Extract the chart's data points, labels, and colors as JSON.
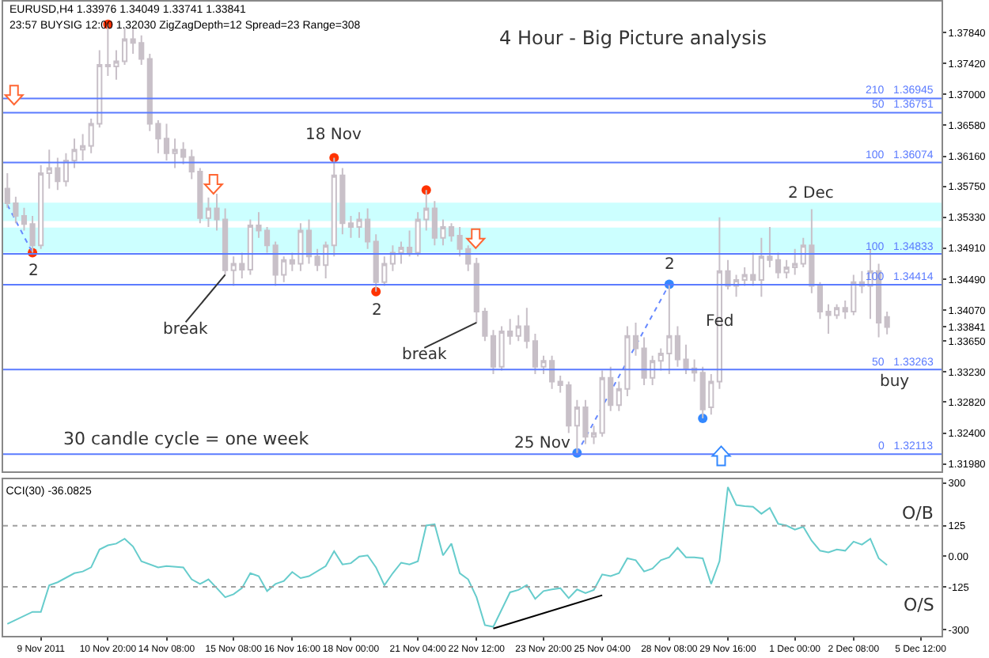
{
  "chart_data": [
    {
      "type": "candlestick",
      "title": "4 Hour - Big Picture analysis",
      "subtitle": "EURUSD,H4 1.33976 1.34049 1.33741 1.33841",
      "annotations": [
        "23:57 BUYSIG 12:00 1.32030 ZigZagDepth=12 Spread=23 Range=308",
        "30 candle cycle = one week",
        {
          "text": "2",
          "y": 1.3485
        },
        {
          "text": "18 Nov",
          "y": 1.3614
        },
        {
          "text": "2",
          "y": 1.3432
        },
        "break",
        "break",
        {
          "text": "25 Nov",
          "y": 1.3213
        },
        {
          "text": "2",
          "y": 1.3442
        },
        {
          "text": "Fed",
          "y": 1.339
        },
        {
          "text": "2 Dec",
          "y": 1.3544
        },
        {
          "text": "buy",
          "y": 1.3317
        }
      ],
      "color": "#c8c0c8",
      "categories": [
        null,
        null,
        null,
        null,
        null,
        null,
        null,
        null,
        null,
        null,
        null,
        null,
        null,
        null,
        null,
        null,
        null,
        null,
        null,
        null,
        null,
        null,
        null,
        null,
        null,
        null,
        null,
        null,
        null,
        null,
        null,
        null,
        null,
        null,
        null,
        null,
        null,
        null,
        null,
        null,
        null,
        null,
        null,
        null,
        null,
        null,
        null,
        null,
        null,
        null,
        null,
        null,
        null,
        null,
        null,
        null,
        null,
        null,
        null,
        null,
        null,
        null,
        null,
        null,
        null,
        null,
        null,
        null,
        null,
        null,
        null,
        null,
        null,
        null,
        null,
        null,
        null,
        null,
        null,
        null,
        null,
        null,
        null,
        null,
        null,
        null,
        null,
        null,
        null,
        null,
        null,
        null,
        null,
        null,
        null,
        null,
        null,
        null,
        null,
        null,
        null,
        null,
        null,
        null,
        null,
        null,
        null,
        null,
        null,
        null,
        null,
        null
      ],
      "ohlc": [
        [
          1.3572,
          1.3593,
          1.3546,
          1.3552
        ],
        [
          1.3552,
          1.3561,
          1.3525,
          1.3535
        ],
        [
          1.3535,
          1.3546,
          1.3515,
          1.3524
        ],
        [
          1.3524,
          1.3535,
          1.3485,
          1.3495
        ],
        [
          1.3495,
          1.3604,
          1.349,
          1.3593
        ],
        [
          1.3593,
          1.3625,
          1.3572,
          1.36
        ],
        [
          1.36,
          1.3614,
          1.357,
          1.3582
        ],
        [
          1.3582,
          1.362,
          1.3575,
          1.361
        ],
        [
          1.361,
          1.364,
          1.36,
          1.3625
        ],
        [
          1.3625,
          1.3646,
          1.361,
          1.363
        ],
        [
          1.363,
          1.3667,
          1.362,
          1.366
        ],
        [
          1.366,
          1.376,
          1.3655,
          1.374
        ],
        [
          1.374,
          1.3795,
          1.3725,
          1.3738
        ],
        [
          1.3738,
          1.376,
          1.372,
          1.3745
        ],
        [
          1.3745,
          1.379,
          1.374,
          1.3775
        ],
        [
          1.3775,
          1.379,
          1.3755,
          1.377
        ],
        [
          1.377,
          1.378,
          1.374,
          1.3748
        ],
        [
          1.3748,
          1.3755,
          1.365,
          1.366
        ],
        [
          1.366,
          1.3665,
          1.362,
          1.364
        ],
        [
          1.364,
          1.366,
          1.361,
          1.362
        ],
        [
          1.362,
          1.364,
          1.36,
          1.3625
        ],
        [
          1.3625,
          1.3635,
          1.3605,
          1.3615
        ],
        [
          1.3615,
          1.3625,
          1.3585,
          1.3595
        ],
        [
          1.3595,
          1.36,
          1.3525,
          1.3532
        ],
        [
          1.3532,
          1.356,
          1.352,
          1.3545
        ],
        [
          1.3545,
          1.3565,
          1.3515,
          1.353
        ],
        [
          1.353,
          1.3545,
          1.3455,
          1.3461
        ],
        [
          1.3461,
          1.348,
          1.344,
          1.347
        ],
        [
          1.347,
          1.3485,
          1.345,
          1.3462
        ],
        [
          1.3462,
          1.353,
          1.3455,
          1.3522
        ],
        [
          1.3522,
          1.354,
          1.3505,
          1.3515
        ],
        [
          1.3515,
          1.352,
          1.3485,
          1.3495
        ],
        [
          1.3495,
          1.35,
          1.344,
          1.3455
        ],
        [
          1.3455,
          1.348,
          1.3445,
          1.3475
        ],
        [
          1.3475,
          1.3485,
          1.346,
          1.347
        ],
        [
          1.347,
          1.3525,
          1.346,
          1.3515
        ],
        [
          1.3515,
          1.353,
          1.347,
          1.348
        ],
        [
          1.348,
          1.349,
          1.346,
          1.3468
        ],
        [
          1.3468,
          1.35,
          1.345,
          1.3495
        ],
        [
          1.3495,
          1.3614,
          1.348,
          1.359
        ],
        [
          1.359,
          1.36,
          1.351,
          1.3525
        ],
        [
          1.3525,
          1.3535,
          1.3505,
          1.352
        ],
        [
          1.352,
          1.354,
          1.3505,
          1.353
        ],
        [
          1.353,
          1.3545,
          1.349,
          1.35
        ],
        [
          1.35,
          1.351,
          1.3432,
          1.3445
        ],
        [
          1.3445,
          1.348,
          1.344,
          1.347
        ],
        [
          1.347,
          1.3495,
          1.346,
          1.3485
        ],
        [
          1.3485,
          1.35,
          1.347,
          1.3492
        ],
        [
          1.3492,
          1.3515,
          1.348,
          1.3485
        ],
        [
          1.3485,
          1.354,
          1.348,
          1.353
        ],
        [
          1.353,
          1.357,
          1.3515,
          1.3545
        ],
        [
          1.3545,
          1.3555,
          1.3495,
          1.3505
        ],
        [
          1.3505,
          1.353,
          1.3495,
          1.352
        ],
        [
          1.352,
          1.3525,
          1.35,
          1.3508
        ],
        [
          1.3508,
          1.352,
          1.348,
          1.349
        ],
        [
          1.349,
          1.3495,
          1.346,
          1.347
        ],
        [
          1.347,
          1.3478,
          1.339,
          1.3405
        ],
        [
          1.3405,
          1.341,
          1.3365,
          1.3372
        ],
        [
          1.3372,
          1.338,
          1.332,
          1.333
        ],
        [
          1.333,
          1.3385,
          1.3325,
          1.3378
        ],
        [
          1.3378,
          1.3395,
          1.336,
          1.3372
        ],
        [
          1.3372,
          1.34,
          1.3365,
          1.3385
        ],
        [
          1.3385,
          1.341,
          1.3355,
          1.3365
        ],
        [
          1.3365,
          1.3375,
          1.332,
          1.333
        ],
        [
          1.333,
          1.3345,
          1.332,
          1.3338
        ],
        [
          1.3338,
          1.3345,
          1.33,
          1.331
        ],
        [
          1.331,
          1.3318,
          1.3295,
          1.3305
        ],
        [
          1.3305,
          1.331,
          1.324,
          1.325
        ],
        [
          1.325,
          1.3285,
          1.3213,
          1.3275
        ],
        [
          1.3275,
          1.3285,
          1.3225,
          1.3235
        ],
        [
          1.3235,
          1.325,
          1.3225,
          1.324
        ],
        [
          1.324,
          1.3325,
          1.3235,
          1.3315
        ],
        [
          1.3315,
          1.333,
          1.327,
          1.3278
        ],
        [
          1.3278,
          1.331,
          1.327,
          1.33
        ],
        [
          1.33,
          1.3385,
          1.329,
          1.3372
        ],
        [
          1.3372,
          1.339,
          1.3345,
          1.3355
        ],
        [
          1.3355,
          1.337,
          1.3305,
          1.3315
        ],
        [
          1.3315,
          1.3345,
          1.3305,
          1.3338
        ],
        [
          1.3338,
          1.3355,
          1.3325,
          1.3348
        ],
        [
          1.3348,
          1.3442,
          1.332,
          1.3372
        ],
        [
          1.3372,
          1.3385,
          1.333,
          1.334
        ],
        [
          1.334,
          1.336,
          1.332,
          1.3328
        ],
        [
          1.3328,
          1.334,
          1.331,
          1.3322
        ],
        [
          1.3322,
          1.333,
          1.326,
          1.3272
        ],
        [
          1.3275,
          1.332,
          1.3265,
          1.331
        ],
        [
          1.331,
          1.3533,
          1.33,
          1.346
        ],
        [
          1.346,
          1.3475,
          1.3435,
          1.344
        ],
        [
          1.344,
          1.3455,
          1.3425,
          1.3448
        ],
        [
          1.3448,
          1.3465,
          1.344,
          1.3455
        ],
        [
          1.3455,
          1.3485,
          1.344,
          1.3448
        ],
        [
          1.3448,
          1.3505,
          1.3425,
          1.348
        ],
        [
          1.348,
          1.352,
          1.3465,
          1.3475
        ],
        [
          1.3475,
          1.3485,
          1.345,
          1.3458
        ],
        [
          1.3458,
          1.3475,
          1.345,
          1.3465
        ],
        [
          1.3465,
          1.349,
          1.3455,
          1.347
        ],
        [
          1.347,
          1.3505,
          1.3465,
          1.3495
        ],
        [
          1.3495,
          1.3544,
          1.343,
          1.344
        ],
        [
          1.344,
          1.3445,
          1.3395,
          1.3405
        ],
        [
          1.3405,
          1.3415,
          1.3375,
          1.34
        ],
        [
          1.34,
          1.3415,
          1.3395,
          1.341
        ],
        [
          1.341,
          1.342,
          1.3395,
          1.3405
        ],
        [
          1.3405,
          1.3455,
          1.34,
          1.3445
        ],
        [
          1.3445,
          1.346,
          1.343,
          1.344
        ],
        [
          1.344,
          1.349,
          1.3395,
          1.346
        ],
        [
          1.346,
          1.347,
          1.337,
          1.339
        ],
        [
          1.33976,
          1.34049,
          1.33741,
          1.33841
        ],
        null,
        null,
        null,
        null,
        null,
        null
      ],
      "series": [
        {
          "type": "scatter",
          "marker": "circle",
          "color": "#ff3300",
          "values": [
            null,
            null,
            null,
            1.3485,
            null,
            null,
            null,
            null,
            null,
            null,
            null,
            null,
            1.3795,
            null,
            null,
            null,
            null,
            null,
            null,
            null,
            null,
            null,
            null,
            null,
            null,
            null,
            null,
            null,
            null,
            null,
            null,
            null,
            null,
            null,
            null,
            null,
            null,
            null,
            null,
            1.3614,
            null,
            null,
            null,
            null,
            1.3432,
            null,
            null,
            null,
            null,
            null,
            1.357,
            null,
            null,
            null,
            null,
            null,
            null,
            null,
            null,
            null,
            null,
            null,
            null,
            null,
            null,
            null,
            null,
            null,
            null,
            null,
            null,
            null,
            null,
            null,
            null,
            null,
            null,
            null,
            null,
            null,
            null,
            null,
            null,
            null,
            null,
            null,
            null,
            null,
            null,
            null,
            null,
            null,
            null,
            null,
            null,
            null,
            null,
            null,
            null,
            null,
            null,
            null,
            null,
            null,
            null,
            null,
            null,
            null,
            null,
            null,
            null,
            null
          ]
        },
        {
          "type": "scatter",
          "marker": "circle",
          "color": "#3388ff",
          "values": [
            null,
            null,
            null,
            null,
            null,
            null,
            null,
            null,
            null,
            null,
            null,
            null,
            null,
            null,
            null,
            null,
            null,
            null,
            null,
            null,
            null,
            null,
            null,
            null,
            null,
            null,
            null,
            null,
            null,
            null,
            null,
            null,
            null,
            null,
            null,
            null,
            null,
            null,
            null,
            null,
            null,
            null,
            null,
            null,
            null,
            null,
            null,
            null,
            null,
            null,
            null,
            null,
            null,
            null,
            null,
            null,
            null,
            null,
            null,
            null,
            null,
            null,
            null,
            null,
            null,
            null,
            null,
            null,
            1.3213,
            null,
            null,
            null,
            null,
            null,
            null,
            null,
            null,
            null,
            null,
            1.3442,
            null,
            null,
            null,
            1.326,
            null,
            null,
            null,
            null,
            null,
            null,
            null,
            null,
            null,
            null,
            null,
            null,
            null,
            null,
            null,
            null,
            null,
            null,
            null,
            null,
            null,
            null,
            null,
            null,
            null,
            null,
            null,
            null
          ]
        },
        {
          "type": "line",
          "line_style": "dotted",
          "color": "#6688ff",
          "values": [
            1.355,
            null,
            null,
            1.3485,
            null,
            null,
            null,
            null,
            null,
            null,
            null,
            null,
            null,
            null,
            null,
            null,
            null,
            null,
            null,
            null,
            null,
            null,
            null,
            null,
            null,
            null,
            null,
            null,
            null,
            null,
            null,
            null,
            null,
            null,
            null,
            null,
            null,
            null,
            null,
            null,
            null,
            null,
            null,
            null,
            null,
            null,
            null,
            null,
            null,
            null,
            null,
            null,
            null,
            null,
            null,
            null,
            null,
            null,
            null,
            null,
            null,
            null,
            null,
            null,
            null,
            null,
            null,
            null,
            null,
            null,
            null,
            null,
            null,
            null,
            null,
            null,
            null,
            null,
            null,
            null,
            null,
            null,
            null,
            null,
            null,
            null,
            null,
            null,
            null,
            null,
            null,
            null,
            null,
            null,
            null,
            null,
            null,
            null,
            null,
            null,
            null,
            null,
            null,
            null,
            null,
            null,
            null,
            null,
            null,
            null,
            null,
            null
          ]
        },
        {
          "type": "line",
          "line_style": "dotted",
          "color": "#6688ff",
          "values": [
            null,
            null,
            null,
            null,
            null,
            null,
            null,
            null,
            null,
            null,
            null,
            null,
            null,
            null,
            null,
            null,
            null,
            null,
            null,
            null,
            null,
            null,
            null,
            null,
            null,
            null,
            null,
            null,
            null,
            null,
            null,
            null,
            null,
            null,
            null,
            null,
            null,
            null,
            null,
            null,
            null,
            null,
            null,
            null,
            null,
            null,
            null,
            null,
            null,
            null,
            null,
            null,
            null,
            null,
            null,
            null,
            null,
            null,
            null,
            null,
            null,
            null,
            null,
            null,
            null,
            null,
            null,
            null,
            1.3213,
            null,
            null,
            null,
            null,
            null,
            null,
            null,
            null,
            null,
            null,
            1.3442,
            null,
            null,
            null,
            null,
            null,
            null,
            null,
            null,
            null,
            null,
            null,
            null,
            null,
            null,
            null,
            null,
            null,
            null,
            null,
            null,
            null,
            null,
            null,
            null,
            null,
            null,
            null,
            null,
            null,
            null,
            null,
            null
          ]
        }
      ],
      "ylim": [
        1.3188,
        1.3826
      ],
      "yticks": [
        {
          "value": 1.3784,
          "label": "1.37840"
        },
        {
          "value": 1.3742,
          "label": "1.37420"
        },
        {
          "value": 1.37,
          "label": "1.37000"
        },
        {
          "value": 1.3658,
          "label": "1.36580"
        },
        {
          "value": 1.3616,
          "label": "1.36160"
        },
        {
          "value": 1.3575,
          "label": "1.35750"
        },
        {
          "value": 1.3533,
          "label": "1.35330"
        },
        {
          "value": 1.3491,
          "label": "1.34910"
        },
        {
          "value": 1.3449,
          "label": "1.34490"
        },
        {
          "value": 1.3407,
          "label": "1.34070"
        },
        {
          "value": 1.33841,
          "label": "1.33841"
        },
        {
          "value": 1.3365,
          "label": "1.33650"
        },
        {
          "value": 1.3323,
          "label": "1.33230"
        },
        {
          "value": 1.3282,
          "label": "1.32820"
        },
        {
          "value": 1.324,
          "label": "1.32400"
        },
        {
          "value": 1.3198,
          "label": "1.31980"
        }
      ],
      "tick_labels": "y",
      "ref_lines": [
        {
          "axis": "y",
          "value": 1.36945,
          "label": "210   1.36945",
          "color": "#5b7bff"
        },
        {
          "axis": "y",
          "value": 1.36751,
          "label": "50   1.36751",
          "color": "#5b7bff"
        },
        {
          "axis": "y",
          "value": 1.36074,
          "label": "100   1.36074",
          "color": "#5b7bff"
        },
        {
          "axis": "y",
          "value": 1.34833,
          "label": "100   1.34833",
          "color": "#5b7bff"
        },
        {
          "axis": "y",
          "value": 1.34414,
          "label": "100   1.34414",
          "color": "#5b7bff"
        },
        {
          "axis": "y",
          "value": 1.33263,
          "label": "50   1.33263",
          "color": "#5b7bff"
        },
        {
          "axis": "y",
          "value": 1.32113,
          "label": "0   1.32113",
          "color": "#5b7bff"
        }
      ],
      "bands": [
        {
          "axis": "y",
          "from": 1.3528,
          "to": 1.3553,
          "color": "#ccffff"
        },
        {
          "axis": "y",
          "from": 1.3485,
          "to": 1.3519,
          "color": "#ccffff"
        }
      ]
    },
    {
      "type": "line",
      "title": "CCI(30) -36.0825",
      "annotations": [
        "O/B",
        "O/S"
      ],
      "categories": [
        null,
        null,
        null,
        null,
        "9 Nov 2011",
        null,
        null,
        null,
        null,
        null,
        null,
        null,
        "10 Nov 20:00",
        null,
        null,
        null,
        null,
        null,
        null,
        "14 Nov 08:00",
        null,
        null,
        null,
        null,
        null,
        null,
        null,
        "15 Nov 08:00",
        null,
        null,
        null,
        null,
        null,
        null,
        "16 Nov 16:00",
        null,
        null,
        null,
        null,
        null,
        null,
        "18 Nov 00:00",
        null,
        null,
        null,
        null,
        null,
        null,
        null,
        "21 Nov 04:00",
        null,
        null,
        null,
        null,
        null,
        null,
        "22 Nov 12:00",
        null,
        null,
        null,
        null,
        null,
        null,
        null,
        "23 Nov 20:00",
        null,
        null,
        null,
        null,
        null,
        null,
        "25 Nov 04:00",
        null,
        null,
        null,
        null,
        null,
        null,
        null,
        "28 Nov 08:00",
        null,
        null,
        null,
        null,
        null,
        null,
        "29 Nov 16:00",
        null,
        null,
        null,
        null,
        null,
        null,
        null,
        "1 Dec 00:00",
        null,
        null,
        null,
        null,
        null,
        null,
        "2 Dec 08:00",
        null,
        null,
        null,
        null,
        null,
        null,
        null,
        "5 Dec 12:00",
        null,
        null
      ],
      "series": [
        {
          "color": "#66cccc",
          "values": [
            -276,
            null,
            null,
            -227,
            -227,
            -118,
            -106,
            null,
            -69,
            -62,
            -45,
            28,
            45,
            52,
            72,
            40,
            -20,
            null,
            -45,
            -40,
            null,
            -45,
            -94,
            -113,
            -94,
            -130,
            -167,
            -155,
            -130,
            -69,
            -81,
            -142,
            -113,
            -101,
            -64,
            -89,
            -81,
            null,
            -40,
            21,
            -33,
            -28,
            -1,
            4,
            -45,
            -118,
            -69,
            -26,
            -33,
            -20,
            126,
            131,
            4,
            52,
            -69,
            -94,
            -167,
            -281,
            -288,
            null,
            -147,
            -137,
            -118,
            -174,
            -142,
            -135,
            -130,
            -171,
            -135,
            -150,
            -137,
            -74,
            -81,
            -69,
            -8,
            -16,
            -62,
            -50,
            -16,
            -4,
            35,
            -4,
            -4,
            -8,
            -113,
            -20,
            283,
            210,
            205,
            203,
            174,
            198,
            133,
            126,
            109,
            121,
            64,
            23,
            16,
            28,
            23,
            60,
            48,
            72,
            -8,
            -36,
            null,
            null,
            null,
            null,
            null,
            null
          ]
        },
        {
          "type": "line",
          "color": "#000000",
          "values": [
            null,
            null,
            null,
            null,
            null,
            null,
            null,
            null,
            null,
            null,
            null,
            null,
            null,
            null,
            null,
            null,
            null,
            null,
            null,
            null,
            null,
            null,
            null,
            null,
            null,
            null,
            null,
            null,
            null,
            null,
            null,
            null,
            null,
            null,
            null,
            null,
            null,
            null,
            null,
            null,
            null,
            null,
            null,
            null,
            null,
            null,
            null,
            null,
            null,
            null,
            null,
            null,
            null,
            null,
            null,
            null,
            null,
            null,
            -295,
            null,
            null,
            null,
            null,
            null,
            null,
            null,
            null,
            null,
            null,
            null,
            null,
            -159,
            null,
            null,
            null,
            null,
            null,
            null,
            null,
            null,
            null,
            null,
            null,
            null,
            null,
            null,
            null,
            null,
            null,
            null,
            null,
            null,
            null,
            null,
            null,
            null,
            null,
            null,
            null,
            null,
            null,
            null,
            null,
            null,
            null,
            null,
            null,
            null,
            null,
            null,
            null,
            null
          ]
        }
      ],
      "ylim": [
        -325,
        315
      ],
      "yticks": [
        300,
        125,
        {
          "value": 0,
          "label": "0.00"
        },
        -125,
        -300
      ],
      "ref_lines": [
        {
          "axis": "y",
          "value": 125,
          "line_style": "dotted",
          "color": "#a0a0a0"
        },
        {
          "axis": "y",
          "value": -125,
          "line_style": "dotted",
          "color": "#a0a0a0"
        }
      ]
    }
  ]
}
